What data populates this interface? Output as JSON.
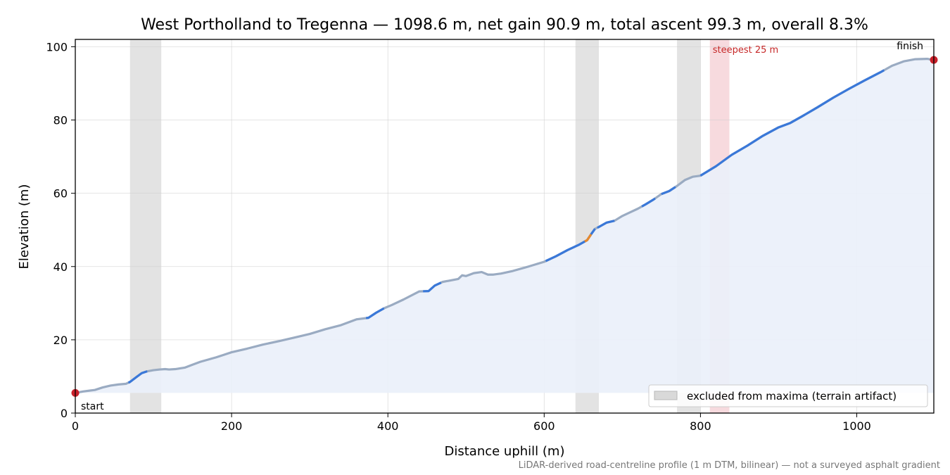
{
  "chart_data": {
    "type": "line",
    "title": "West Portholland to Tregenna — 1098.6 m, net gain 90.9 m, total ascent 99.3 m, overall 8.3%",
    "xlabel": "Distance uphill (m)",
    "ylabel": "Elevation (m)",
    "xlim": [
      0,
      1098.6
    ],
    "ylim": [
      0,
      102
    ],
    "x_ticks": [
      0,
      200,
      400,
      600,
      800,
      1000
    ],
    "y_ticks": [
      0,
      20,
      40,
      60,
      80,
      100
    ],
    "x_tick_labels": [
      "0",
      "200",
      "400",
      "600",
      "800",
      "1000"
    ],
    "y_tick_labels": [
      "0",
      "20",
      "40",
      "60",
      "80",
      "100"
    ],
    "grid": true,
    "fill_base": 5.5,
    "colors": {
      "line": "#9aabc2",
      "steep": "#3a78d8",
      "very_steep": "#e8892b",
      "fill": "#eaf0fa",
      "excluded": "#d9d9d9",
      "steepest": "#f6d4d8",
      "endpoint": "#c8202a"
    },
    "series": [
      {
        "x": [
          0,
          10,
          25,
          35,
          45,
          55,
          65,
          70,
          78,
          85,
          92,
          100,
          108,
          115,
          120,
          128,
          140,
          150,
          160,
          170,
          180,
          190,
          200,
          220,
          240,
          260,
          280,
          300,
          320,
          340,
          360,
          375,
          385,
          395,
          405,
          420,
          440,
          452,
          460,
          470,
          480,
          490,
          495,
          500,
          510,
          520,
          528,
          535,
          545,
          560,
          580,
          600,
          615,
          630,
          645,
          655,
          660,
          665,
          670,
          680,
          690,
          700,
          710,
          720,
          730,
          740,
          750,
          760,
          770,
          775,
          780,
          790,
          800,
          820,
          840,
          860,
          880,
          900,
          915,
          930,
          950,
          970,
          990,
          1010,
          1030,
          1045,
          1060,
          1075,
          1090,
          1098.6
        ],
        "y": [
          5.5,
          5.9,
          6.3,
          7.0,
          7.5,
          7.8,
          8.0,
          8.5,
          9.8,
          10.9,
          11.4,
          11.7,
          11.9,
          12.0,
          11.9,
          12.0,
          12.4,
          13.2,
          14.0,
          14.6,
          15.2,
          15.9,
          16.6,
          17.6,
          18.7,
          19.6,
          20.6,
          21.6,
          22.9,
          24.0,
          25.6,
          26.0,
          27.4,
          28.6,
          29.5,
          31.0,
          33.2,
          33.3,
          34.8,
          35.8,
          36.2,
          36.6,
          37.6,
          37.4,
          38.2,
          38.5,
          37.8,
          37.8,
          38.1,
          38.8,
          40.0,
          41.3,
          42.8,
          44.5,
          46.0,
          47.2,
          48.8,
          50.3,
          50.8,
          52.0,
          52.5,
          53.8,
          54.8,
          55.8,
          57.0,
          58.3,
          59.8,
          60.6,
          62.0,
          62.8,
          63.6,
          64.5,
          64.8,
          67.4,
          70.5,
          73.0,
          75.7,
          78.0,
          79.2,
          81.0,
          83.5,
          86.1,
          88.5,
          90.8,
          93.0,
          94.8,
          96.0,
          96.6,
          96.7,
          96.4
        ]
      }
    ],
    "steep_segments": [
      [
        68,
        92
      ],
      [
        372,
        395
      ],
      [
        445,
        468
      ],
      [
        602,
        665
      ],
      [
        668,
        690
      ],
      [
        725,
        742
      ],
      [
        750,
        768
      ],
      [
        800,
        1035
      ]
    ],
    "very_steep_segments": [
      [
        652,
        660
      ]
    ],
    "excluded_bands": [
      [
        70,
        110
      ],
      [
        640,
        670
      ],
      [
        770,
        800
      ]
    ],
    "steepest_band": [
      812,
      837
    ],
    "steepest_label": "steepest 25 m",
    "endpoints": {
      "start": {
        "x": 0,
        "y": 5.5,
        "label": "start"
      },
      "finish": {
        "x": 1098.6,
        "y": 96.4,
        "label": "finish"
      }
    },
    "legend": {
      "placement": "bottom-right",
      "entries": [
        {
          "label": "excluded from maxima (terrain artifact)"
        }
      ]
    },
    "footnote": "LiDAR-derived road-centreline profile (1 m DTM, bilinear) — not a surveyed asphalt gradient"
  }
}
